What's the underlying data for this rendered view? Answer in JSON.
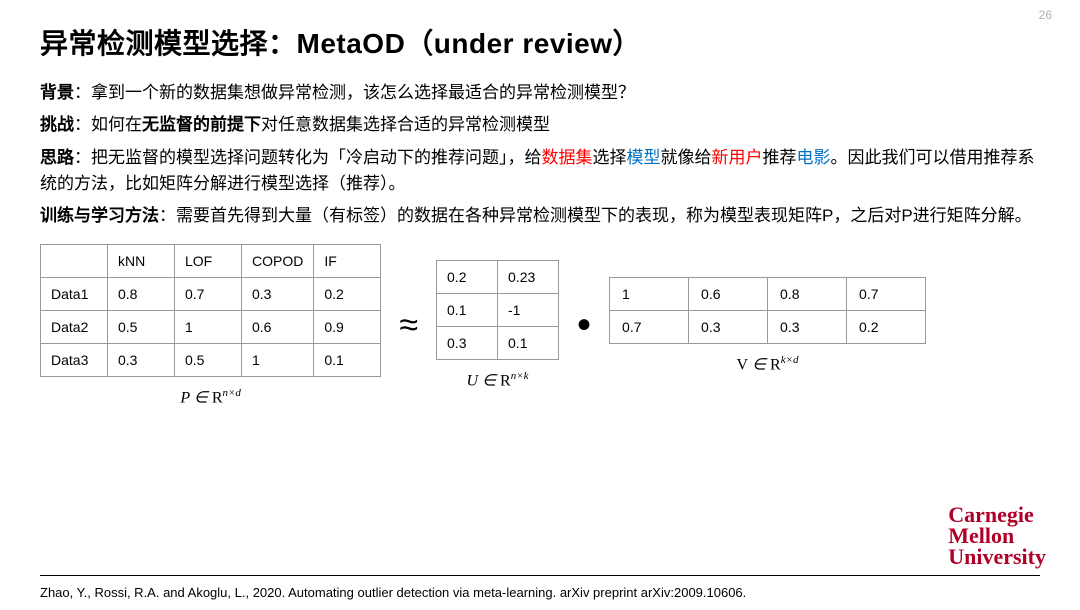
{
  "page_number": "26",
  "title": "异常检测模型选择：MetaOD（under review）",
  "paragraphs": {
    "bg_label": "背景",
    "bg_text": "：拿到一个新的数据集想做异常检测，该怎么选择最适合的异常检测模型？",
    "ch_label": "挑战",
    "ch_pre": "：如何在",
    "ch_bold": "无监督的前提下",
    "ch_post": "对任意数据集选择合适的异常检测模型",
    "idea_label": "思路",
    "idea_pre": "：把无监督的模型选择问题转化为「冷启动下的推荐问题」，给",
    "idea_r1": "数据集",
    "idea_mid1": "选择",
    "idea_b1": "模型",
    "idea_mid2": "就像给",
    "idea_r2": "新用户",
    "idea_mid3": "推荐",
    "idea_b2": "电影",
    "idea_end": "。因此我们可以借用推荐系统的方法，比如矩阵分解进行模型选择（推荐）。",
    "tr_label": "训练与学习方法",
    "tr_text": "：需要首先得到大量（有标签）的数据在各种异常检测模型下的表现，称为模型表现矩阵P，之后对P进行矩阵分解。"
  },
  "matrices": {
    "P": {
      "headers": [
        "",
        "kNN",
        "LOF",
        "COPOD",
        "IF"
      ],
      "rows": [
        [
          "Data1",
          "0.8",
          "0.7",
          "0.3",
          "0.2"
        ],
        [
          "Data2",
          "0.5",
          "1",
          "0.6",
          "0.9"
        ],
        [
          "Data3",
          "0.3",
          "0.5",
          "1",
          "0.1"
        ]
      ],
      "caption_var": "P",
      "caption_space": "n×d"
    },
    "approx": "≈",
    "U": {
      "rows": [
        [
          "0.2",
          "0.23"
        ],
        [
          "0.1",
          "-1"
        ],
        [
          "0.3",
          "0.1"
        ]
      ],
      "caption_var": "U",
      "caption_space": "n×k"
    },
    "dot": "•",
    "V": {
      "rows": [
        [
          "1",
          "0.6",
          "0.8",
          "0.7"
        ],
        [
          "0.7",
          "0.3",
          "0.3",
          "0.2"
        ]
      ],
      "caption_var": "V",
      "caption_space": "k×d"
    }
  },
  "citation": "Zhao, Y., Rossi, R.A. and Akoglu, L., 2020. Automating outlier detection via meta-learning. arXiv preprint arXiv:2009.10606.",
  "logo": {
    "l1": "Carnegie",
    "l2": "Mellon",
    "l3": "University"
  },
  "colors": {
    "red": "#ff0000",
    "blue": "#0070c0",
    "cmu_red": "#b00028",
    "text": "#000000",
    "pagenum": "#b0b0b0",
    "border": "#999999",
    "bg": "#ffffff"
  }
}
